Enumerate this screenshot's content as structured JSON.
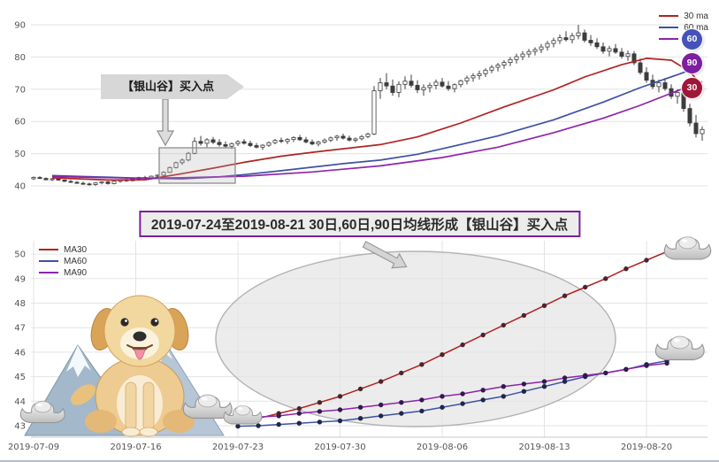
{
  "banner": {
    "text": "2019-07-24至2019-08-21 30日,60日,90日均线形成【银山谷】买入点",
    "border_color": "#7a1fa2"
  },
  "chart_data": [
    {
      "id": "top",
      "type": "candlestick",
      "ylabel": "",
      "y_ticks": [
        40,
        50,
        60,
        70,
        80,
        90
      ],
      "ylim": [
        38,
        92
      ],
      "grid": "horizontal",
      "legend_position": "top-right",
      "legend": [
        {
          "label": "30 ma",
          "color": "#b22222"
        },
        {
          "label": "60 ma",
          "color": "#3f51a3"
        },
        {
          "label": "",
          "color": "#8e24aa"
        }
      ],
      "badges": [
        {
          "label": "60",
          "color": "#4553b8"
        },
        {
          "label": "90",
          "color": "#7d1fa0"
        },
        {
          "label": "30",
          "color": "#a01638"
        }
      ],
      "annotation": {
        "label": "【银山谷】买入点"
      },
      "candles": [
        [
          42.2,
          42.9,
          41.8,
          42.6
        ],
        [
          42.6,
          43.0,
          42.1,
          42.3
        ],
        [
          42.3,
          42.6,
          41.7,
          41.9
        ],
        [
          41.9,
          42.4,
          41.5,
          42.2
        ],
        [
          42.2,
          42.5,
          41.6,
          41.8
        ],
        [
          41.8,
          42.0,
          41.2,
          41.4
        ],
        [
          41.4,
          41.8,
          40.9,
          41.1
        ],
        [
          41.1,
          41.5,
          40.6,
          40.8
        ],
        [
          40.8,
          41.3,
          40.3,
          40.6
        ],
        [
          40.6,
          41.0,
          40.1,
          40.4
        ],
        [
          40.4,
          41.1,
          40.0,
          40.9
        ],
        [
          40.9,
          41.4,
          40.5,
          41.2
        ],
        [
          41.2,
          41.5,
          40.4,
          40.7
        ],
        [
          40.7,
          41.6,
          40.5,
          41.4
        ],
        [
          41.4,
          42.0,
          41.0,
          41.8
        ],
        [
          41.8,
          42.3,
          41.3,
          41.6
        ],
        [
          41.6,
          42.5,
          41.4,
          42.2
        ],
        [
          42.2,
          42.8,
          41.8,
          42.6
        ],
        [
          42.6,
          43.1,
          42.0,
          42.4
        ],
        [
          42.4,
          43.2,
          42.1,
          43.0
        ],
        [
          43.0,
          43.6,
          42.6,
          43.3
        ],
        [
          43.3,
          44.5,
          43.1,
          44.2
        ],
        [
          44.2,
          46.0,
          44.0,
          45.7
        ],
        [
          45.7,
          47.5,
          45.4,
          47.2
        ],
        [
          47.2,
          48.5,
          46.5,
          48.0
        ],
        [
          48.0,
          50.5,
          47.6,
          50.1
        ],
        [
          50.1,
          55.0,
          49.8,
          53.8
        ],
        [
          53.8,
          55.5,
          52.5,
          53.2
        ],
        [
          53.2,
          54.8,
          52.0,
          54.3
        ],
        [
          54.3,
          55.2,
          53.0,
          53.5
        ],
        [
          53.5,
          54.5,
          52.2,
          52.8
        ],
        [
          52.8,
          53.8,
          51.8,
          52.3
        ],
        [
          52.3,
          53.5,
          51.5,
          53.1
        ],
        [
          53.1,
          54.2,
          52.4,
          53.7
        ],
        [
          53.7,
          54.5,
          52.8,
          53.2
        ],
        [
          53.2,
          54.0,
          52.0,
          52.5
        ],
        [
          52.5,
          53.3,
          51.6,
          52.0
        ],
        [
          52.0,
          53.0,
          51.2,
          52.6
        ],
        [
          52.6,
          53.8,
          52.1,
          53.4
        ],
        [
          53.4,
          54.6,
          52.9,
          54.1
        ],
        [
          54.1,
          55.0,
          53.3,
          53.8
        ],
        [
          53.8,
          54.8,
          53.0,
          54.4
        ],
        [
          54.4,
          55.4,
          53.6,
          55.0
        ],
        [
          55.0,
          55.8,
          53.9,
          54.3
        ],
        [
          54.3,
          55.2,
          53.2,
          53.6
        ],
        [
          53.6,
          54.4,
          52.6,
          53.0
        ],
        [
          53.0,
          54.0,
          52.3,
          53.6
        ],
        [
          53.6,
          54.7,
          53.1,
          54.2
        ],
        [
          54.2,
          55.3,
          53.6,
          54.9
        ],
        [
          54.9,
          55.8,
          54.0,
          55.4
        ],
        [
          55.4,
          56.2,
          54.4,
          54.8
        ],
        [
          54.8,
          55.6,
          53.8,
          54.2
        ],
        [
          54.2,
          55.0,
          53.5,
          54.6
        ],
        [
          54.6,
          55.8,
          54.1,
          55.3
        ],
        [
          55.3,
          56.5,
          54.8,
          56.1
        ],
        [
          56.1,
          71.0,
          55.8,
          69.5
        ],
        [
          69.5,
          73.5,
          67.0,
          72.0
        ],
        [
          72.0,
          75.0,
          70.0,
          71.0
        ],
        [
          71.0,
          73.0,
          68.0,
          69.0
        ],
        [
          69.0,
          72.5,
          67.5,
          71.5
        ],
        [
          71.5,
          74.0,
          70.0,
          72.5
        ],
        [
          72.5,
          74.5,
          70.5,
          71.2
        ],
        [
          71.2,
          72.8,
          68.8,
          69.8
        ],
        [
          69.8,
          71.5,
          68.0,
          70.5
        ],
        [
          70.5,
          72.0,
          69.0,
          71.2
        ],
        [
          71.2,
          73.0,
          70.0,
          72.2
        ],
        [
          72.2,
          73.5,
          70.5,
          71.0
        ],
        [
          71.0,
          72.5,
          69.5,
          70.2
        ],
        [
          70.2,
          71.8,
          69.0,
          71.4
        ],
        [
          71.4,
          73.0,
          70.6,
          72.6
        ],
        [
          72.6,
          74.2,
          71.5,
          73.5
        ],
        [
          73.5,
          75.0,
          72.3,
          74.2
        ],
        [
          74.2,
          75.8,
          73.0,
          74.8
        ],
        [
          74.8,
          76.5,
          73.8,
          75.9
        ],
        [
          75.9,
          77.5,
          75.0,
          76.8
        ],
        [
          76.8,
          78.2,
          75.5,
          77.5
        ],
        [
          77.5,
          79.0,
          76.4,
          78.3
        ],
        [
          78.3,
          80.0,
          77.2,
          79.2
        ],
        [
          79.2,
          81.0,
          78.0,
          80.1
        ],
        [
          80.1,
          81.8,
          79.0,
          80.9
        ],
        [
          80.9,
          82.5,
          79.8,
          81.7
        ],
        [
          81.7,
          83.0,
          80.5,
          82.3
        ],
        [
          82.3,
          84.0,
          81.2,
          83.1
        ],
        [
          83.1,
          85.0,
          82.0,
          84.2
        ],
        [
          84.2,
          86.0,
          83.0,
          85.1
        ],
        [
          85.1,
          87.0,
          84.0,
          86.0
        ],
        [
          86.0,
          88.0,
          84.8,
          85.4
        ],
        [
          85.4,
          87.5,
          84.2,
          86.6
        ],
        [
          86.6,
          90.0,
          85.5,
          87.5
        ],
        [
          87.5,
          88.5,
          84.5,
          85.2
        ],
        [
          85.2,
          86.8,
          83.5,
          84.4
        ],
        [
          84.4,
          85.8,
          82.5,
          83.2
        ],
        [
          83.2,
          84.5,
          81.0,
          81.8
        ],
        [
          81.8,
          83.5,
          80.2,
          82.6
        ],
        [
          82.6,
          84.0,
          81.0,
          81.5
        ],
        [
          81.5,
          82.8,
          79.5,
          80.2
        ],
        [
          80.2,
          82.0,
          78.8,
          81.0
        ],
        [
          81.0,
          81.8,
          77.5,
          78.2
        ],
        [
          78.2,
          79.5,
          74.5,
          75.2
        ],
        [
          75.2,
          76.8,
          72.0,
          72.8
        ],
        [
          72.8,
          74.5,
          70.0,
          70.8
        ],
        [
          70.8,
          73.0,
          69.0,
          72.0
        ],
        [
          72.0,
          73.5,
          69.5,
          70.2
        ],
        [
          70.2,
          71.5,
          67.0,
          67.8
        ],
        [
          67.8,
          70.0,
          65.5,
          69.0
        ],
        [
          69.0,
          70.5,
          63.0,
          64.0
        ],
        [
          64.0,
          65.5,
          58.5,
          59.5
        ],
        [
          59.5,
          62.0,
          55.0,
          56.2
        ],
        [
          56.2,
          58.5,
          54.0,
          57.5
        ]
      ],
      "ma_lines": [
        {
          "name": "30ma",
          "color": "#b22222",
          "points": [
            [
              3,
              42.5
            ],
            [
              12,
              41.8
            ],
            [
              18,
              41.9
            ],
            [
              24,
              43.8
            ],
            [
              29,
              45.5
            ],
            [
              34,
              47.3
            ],
            [
              40,
              49.2
            ],
            [
              45,
              50.4
            ],
            [
              50,
              51.5
            ],
            [
              56,
              52.8
            ],
            [
              62,
              55.2
            ],
            [
              69,
              59.5
            ],
            [
              76,
              64.5
            ],
            [
              84,
              69.8
            ],
            [
              89,
              73.8
            ],
            [
              95,
              77.6
            ],
            [
              99,
              79.6
            ],
            [
              103,
              79.0
            ],
            [
              106,
              75.5
            ],
            [
              108,
              71.0
            ]
          ]
        },
        {
          "name": "60ma",
          "color": "#3f51a3",
          "points": [
            [
              3,
              43.2
            ],
            [
              10,
              42.8
            ],
            [
              17,
              42.4
            ],
            [
              24,
              42.2
            ],
            [
              30,
              42.8
            ],
            [
              34,
              43.5
            ],
            [
              40,
              44.7
            ],
            [
              45,
              45.8
            ],
            [
              50,
              46.9
            ],
            [
              56,
              48.0
            ],
            [
              62,
              49.8
            ],
            [
              66,
              51.5
            ],
            [
              75,
              55.5
            ],
            [
              84,
              60.5
            ],
            [
              92,
              66.0
            ],
            [
              98,
              70.5
            ],
            [
              104,
              74.5
            ],
            [
              108,
              77.3
            ]
          ]
        },
        {
          "name": "90ma",
          "color": "#8e24aa",
          "points": [
            [
              3,
              42.9
            ],
            [
              10,
              42.6
            ],
            [
              17,
              42.4
            ],
            [
              24,
              42.5
            ],
            [
              34,
              43.0
            ],
            [
              45,
              44.3
            ],
            [
              56,
              46.2
            ],
            [
              66,
              48.8
            ],
            [
              75,
              52.0
            ],
            [
              84,
              56.5
            ],
            [
              92,
              61.0
            ],
            [
              98,
              65.0
            ],
            [
              104,
              69.5
            ],
            [
              108,
              72.3
            ]
          ]
        }
      ]
    },
    {
      "id": "bottom",
      "type": "line",
      "y_ticks": [
        43,
        44,
        45,
        46,
        47,
        48,
        49,
        50
      ],
      "ylim": [
        42.8,
        50.5
      ],
      "grid": "both",
      "legend_position": "top-left",
      "x_tick_labels": [
        "2019-07-09",
        "2019-07-16",
        "2019-07-23",
        "2019-07-30",
        "2019-08-06",
        "2019-08-13",
        "2019-08-20"
      ],
      "x_tick_indices": [
        0,
        5,
        10,
        15,
        20,
        25,
        30
      ],
      "x_start_index": 10,
      "legend": [
        {
          "label": "MA30",
          "color": "#b22222"
        },
        {
          "label": "MA60",
          "color": "#3f51a3"
        },
        {
          "label": "MA90",
          "color": "#8e24aa"
        }
      ],
      "series": [
        {
          "name": "MA30",
          "color": "#b22222",
          "dot": "#4a2430",
          "values": [
            43.15,
            43.3,
            43.5,
            43.7,
            43.95,
            44.2,
            44.5,
            44.8,
            45.15,
            45.5,
            45.9,
            46.3,
            46.7,
            47.1,
            47.5,
            47.9,
            48.3,
            48.65,
            49.0,
            49.4,
            49.75,
            50.1
          ]
        },
        {
          "name": "MA60",
          "color": "#3f51a3",
          "dot": "#1e2749",
          "values": [
            42.98,
            43.0,
            43.05,
            43.1,
            43.15,
            43.2,
            43.3,
            43.4,
            43.5,
            43.6,
            43.75,
            43.9,
            44.05,
            44.2,
            44.4,
            44.6,
            44.8,
            45.0,
            45.15,
            45.3,
            45.5,
            45.65
          ]
        },
        {
          "name": "MA90",
          "color": "#8e24aa",
          "dot": "#301a4d",
          "values": [
            43.3,
            43.35,
            43.4,
            43.5,
            43.58,
            43.65,
            43.75,
            43.85,
            43.95,
            44.05,
            44.2,
            44.3,
            44.45,
            44.6,
            44.7,
            44.8,
            44.95,
            45.05,
            45.15,
            45.3,
            45.45,
            45.55
          ]
        }
      ]
    }
  ]
}
